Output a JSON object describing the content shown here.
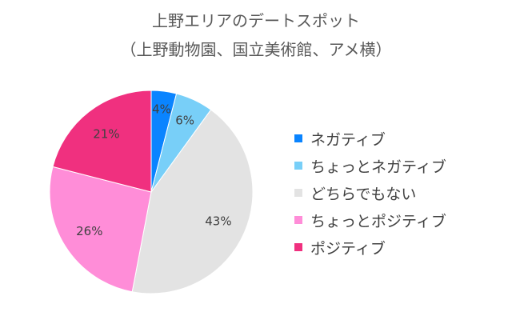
{
  "chart_data": {
    "type": "pie",
    "title_line1": "上野エリアのデートスポット",
    "title_line2": "（上野動物園、国立美術館、アメ横）",
    "categories": [
      "ネガティブ",
      "ちょっとネガティブ",
      "どちらでもない",
      "ちょっとポジティブ",
      "ポジティブ"
    ],
    "values": [
      4,
      6,
      43,
      26,
      21
    ],
    "labels": [
      "4%",
      "6%",
      "43%",
      "26%",
      "21%"
    ],
    "colors": [
      "#0a84ff",
      "#78cff8",
      "#e3e3e3",
      "#ff8dd8",
      "#f0307f"
    ],
    "legend_position": "right"
  }
}
